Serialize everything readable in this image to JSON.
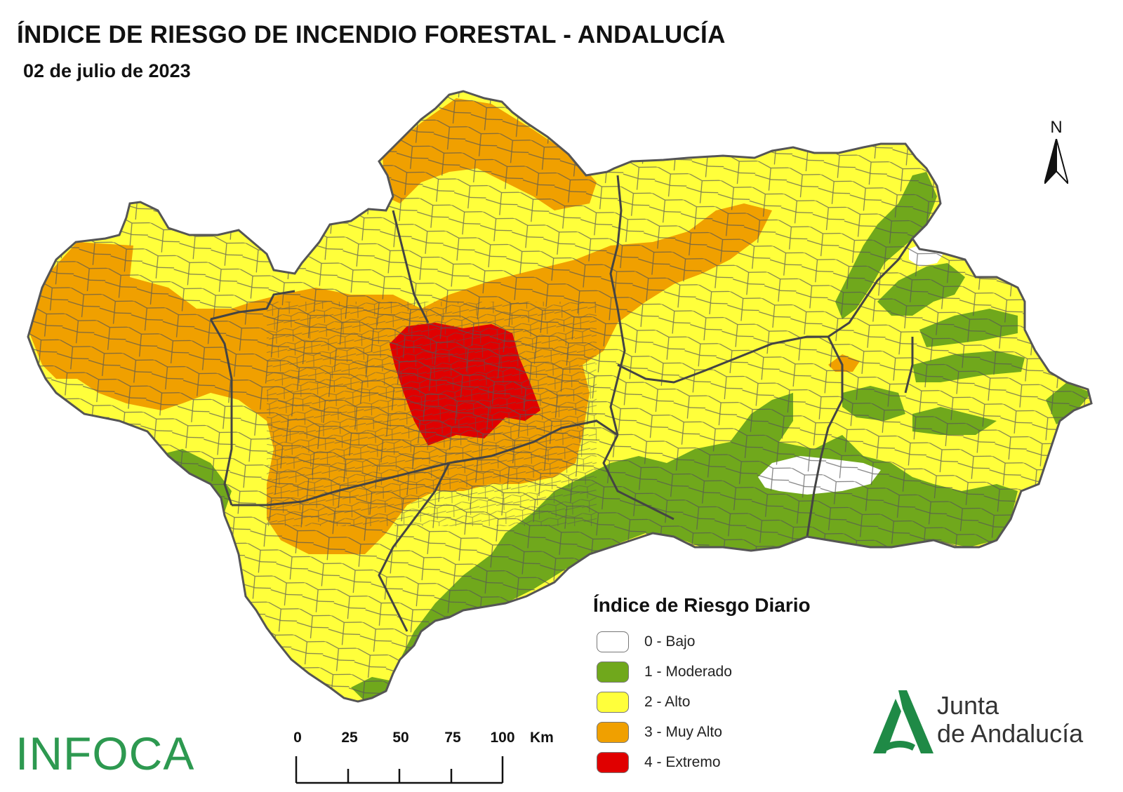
{
  "title": "ÍNDICE DE RIESGO DE INCENDIO FORESTAL - ANDALUCÍA",
  "subtitle": "02 de julio de 2023",
  "north_label": "N",
  "legend": {
    "title": "Índice de Riesgo Diario",
    "items": [
      {
        "label": "0 - Bajo",
        "color": "#ffffff"
      },
      {
        "label": "1 - Moderado",
        "color": "#70a81c"
      },
      {
        "label": "2 - Alto",
        "color": "#ffff3b"
      },
      {
        "label": "3 - Muy Alto",
        "color": "#f0a000"
      },
      {
        "label": "4 - Extremo",
        "color": "#e00000"
      }
    ]
  },
  "scale": {
    "ticks": [
      "0",
      "25",
      "50",
      "75",
      "100"
    ],
    "unit": "Km"
  },
  "logos": {
    "infoca": "INFOCA",
    "junta_line1": "Junta",
    "junta_line2": "de Andalucía"
  },
  "colors": {
    "bajo": "#ffffff",
    "moderado": "#70a81c",
    "alto": "#ffff3b",
    "muy_alto": "#f0a000",
    "extremo": "#e00000",
    "borders": "#555555",
    "province_borders": "#444444",
    "infoca_green": "#2d9950",
    "junta_green": "#1f8a46"
  }
}
